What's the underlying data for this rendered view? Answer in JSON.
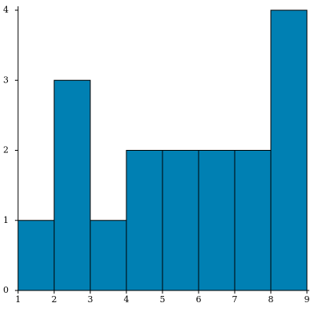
{
  "chart_data": {
    "type": "histogram",
    "bins": [
      1,
      2,
      3,
      4,
      5,
      6,
      7,
      8,
      9
    ],
    "values": [
      1,
      3,
      1,
      2,
      2,
      2,
      2,
      4
    ],
    "color": "#0080b3",
    "xlim": [
      1,
      9
    ],
    "xticks": [
      1,
      2,
      3,
      4,
      5,
      6,
      7,
      8,
      9
    ],
    "ylim": [
      0,
      4
    ],
    "yticks": [
      0,
      1,
      2,
      3,
      4
    ]
  }
}
